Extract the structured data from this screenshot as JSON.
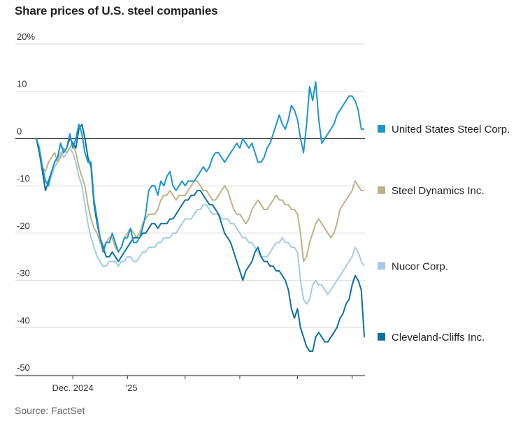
{
  "title": "Share prices of U.S. steel companies",
  "source": "Source: FactSet",
  "chart_data": {
    "type": "line",
    "title": "Share prices of U.S. steel companies",
    "ylabel": "",
    "ylim": [
      -50,
      20
    ],
    "yticks": [
      {
        "value": 20,
        "label": "20%"
      },
      {
        "value": 10,
        "label": "10"
      },
      {
        "value": 0,
        "label": "0"
      },
      {
        "value": -10,
        "label": "-10"
      },
      {
        "value": -20,
        "label": "-20"
      },
      {
        "value": -30,
        "label": "-30"
      },
      {
        "value": -40,
        "label": "-40"
      },
      {
        "value": -50,
        "label": "-50"
      }
    ],
    "x_index_range": [
      0,
      108
    ],
    "xticks": [
      {
        "index": 12,
        "label": "Dec. 2024"
      },
      {
        "index": 30,
        "label": "’25"
      },
      {
        "index": 49,
        "label": ""
      },
      {
        "index": 67,
        "label": ""
      },
      {
        "index": 86,
        "label": ""
      },
      {
        "index": 104,
        "label": ""
      }
    ],
    "grid": true,
    "legend_position": "right",
    "series": [
      {
        "name": "United States Steel Corp.",
        "color": "#1a96cf",
        "values": [
          0,
          -2,
          -6,
          -9,
          -10,
          -7,
          -5,
          -4,
          -1,
          -3,
          -2,
          1,
          -2,
          0,
          3,
          1,
          -3,
          -5,
          -5,
          -13,
          -17,
          -21,
          -24,
          -22,
          -22,
          -20,
          -22,
          -24,
          -23,
          -21,
          -21,
          -19,
          -22,
          -22,
          -21,
          -19,
          -16,
          -11,
          -10,
          -10,
          -12,
          -9,
          -10,
          -8,
          -7,
          -10,
          -11,
          -10,
          -9,
          -10,
          -9,
          -9,
          -9,
          -8,
          -7,
          -6,
          -7,
          -6,
          -4,
          -3,
          -3,
          -4,
          -5,
          -4,
          -3,
          -2,
          -1,
          -2,
          0,
          -1,
          -2,
          -1,
          -3,
          -5,
          -5,
          -4,
          -2,
          -1,
          1,
          3,
          5,
          3,
          2,
          4,
          7,
          6,
          4,
          0,
          -3,
          3,
          11,
          8,
          12,
          4,
          -1,
          0,
          1,
          2,
          3,
          5,
          6,
          7,
          8,
          9,
          9,
          8,
          6,
          2,
          2
        ]
      },
      {
        "name": "Steel Dynamics Inc.",
        "color": "#bfb281",
        "values": [
          0,
          -3,
          -6,
          -7,
          -5,
          -4,
          -3,
          -5,
          -4,
          -2,
          -3,
          -2,
          -1,
          -3,
          -6,
          -8,
          -10,
          -14,
          -17,
          -19,
          -20,
          -22,
          -23,
          -22,
          -21,
          -21,
          -23,
          -24,
          -23,
          -21,
          -20,
          -19,
          -20,
          -21,
          -20,
          -18,
          -17,
          -16,
          -16,
          -16,
          -15,
          -13,
          -12,
          -12,
          -11,
          -12,
          -13,
          -12,
          -12,
          -12,
          -11,
          -10,
          -9,
          -9,
          -10,
          -11,
          -11,
          -12,
          -13,
          -13,
          -12,
          -11,
          -10,
          -11,
          -13,
          -15,
          -16,
          -16,
          -17,
          -18,
          -17,
          -15,
          -14,
          -13,
          -14,
          -15,
          -15,
          -14,
          -13,
          -12,
          -13,
          -13,
          -14,
          -14,
          -15,
          -15,
          -16,
          -20,
          -26,
          -25,
          -22,
          -20,
          -18,
          -17,
          -18,
          -19,
          -20,
          -21,
          -20,
          -18,
          -15,
          -14,
          -13,
          -12,
          -11,
          -9,
          -10,
          -11,
          -11
        ]
      },
      {
        "name": "Nucor Corp.",
        "color": "#a0cce9",
        "values": [
          0,
          -3,
          -6,
          -9,
          -9,
          -8,
          -6,
          -5,
          -3,
          -4,
          -3,
          -2,
          -3,
          -5,
          -8,
          -10,
          -14,
          -18,
          -21,
          -23,
          -25,
          -26,
          -27,
          -27,
          -26,
          -26,
          -26,
          -27,
          -26,
          -26,
          -25,
          -25,
          -26,
          -26,
          -25,
          -24,
          -24,
          -23,
          -23,
          -23,
          -22,
          -22,
          -21,
          -21,
          -21,
          -20,
          -20,
          -19,
          -18,
          -17,
          -17,
          -17,
          -16,
          -15,
          -15,
          -14,
          -14,
          -15,
          -16,
          -16,
          -16,
          -17,
          -17,
          -17,
          -18,
          -18,
          -19,
          -20,
          -21,
          -21,
          -22,
          -22,
          -23,
          -24,
          -25,
          -25,
          -25,
          -24,
          -23,
          -22,
          -22,
          -21,
          -22,
          -22,
          -23,
          -23,
          -24,
          -30,
          -34,
          -35,
          -34,
          -31,
          -30,
          -31,
          -31,
          -32,
          -33,
          -32,
          -31,
          -30,
          -29,
          -28,
          -27,
          -26,
          -25,
          -23,
          -24,
          -26,
          -27
        ]
      },
      {
        "name": "Cleveland-Cliffs Inc.",
        "color": "#0b6fa4",
        "values": [
          0,
          -3,
          -7,
          -11,
          -9,
          -7,
          -5,
          -4,
          -1,
          -3,
          -2,
          0,
          -1,
          -2,
          2,
          3,
          0,
          -4,
          -6,
          -14,
          -18,
          -21,
          -23,
          -25,
          -25,
          -24,
          -25,
          -26,
          -25,
          -24,
          -23,
          -22,
          -21,
          -21,
          -21,
          -20,
          -20,
          -19,
          -18,
          -18,
          -19,
          -18,
          -18,
          -18,
          -17,
          -17,
          -16,
          -15,
          -14,
          -13,
          -13,
          -12,
          -12,
          -11,
          -11,
          -12,
          -13,
          -14,
          -14,
          -15,
          -16,
          -18,
          -20,
          -21,
          -22,
          -24,
          -26,
          -28,
          -30,
          -28,
          -27,
          -26,
          -24,
          -23,
          -25,
          -26,
          -26,
          -27,
          -27,
          -28,
          -28,
          -29,
          -30,
          -32,
          -36,
          -38,
          -36,
          -40,
          -42,
          -44,
          -45,
          -45,
          -42,
          -41,
          -42,
          -43,
          -43,
          -42,
          -41,
          -40,
          -38,
          -37,
          -35,
          -34,
          -31,
          -29,
          -30,
          -32,
          -42
        ]
      }
    ]
  }
}
